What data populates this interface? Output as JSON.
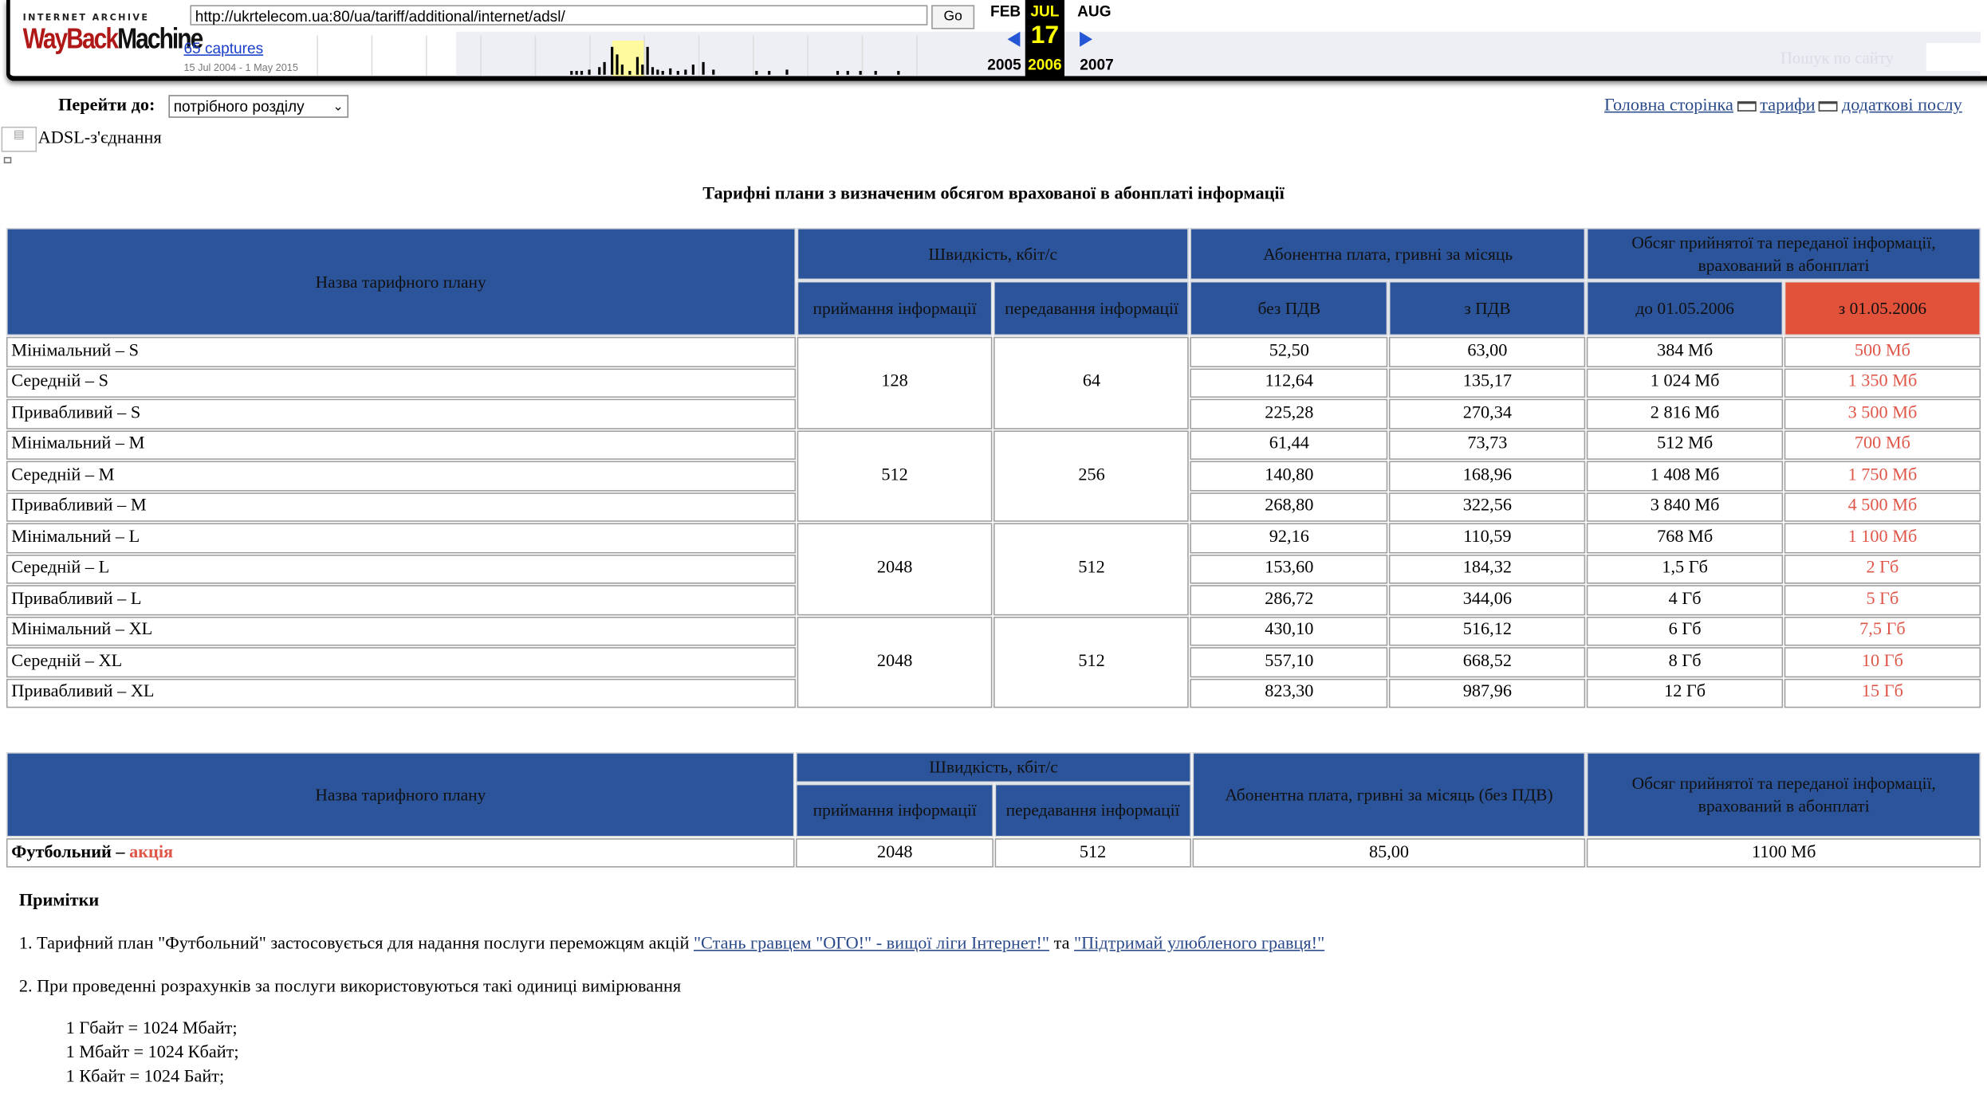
{
  "wayback": {
    "logo_top": "INTERNET ARCHIVE",
    "logo_main_a": "WayBack",
    "logo_main_b": "Machine",
    "url": "http://ukrtelecom.ua:80/ua/tariff/additional/internet/adsl/",
    "go_label": "Go",
    "captures_link": "65 captures",
    "date_range": "15 Jul 2004 - 1 May 2015",
    "months": {
      "prev": "FEB",
      "current": "JUL",
      "next": "AUG"
    },
    "day": "17",
    "years": {
      "prev": "2005",
      "current": "2006",
      "next": "2007"
    },
    "search_label": "Пошук по сайту"
  },
  "nav": {
    "goto_label": "Перейти до:",
    "goto_select": "потрібного розділу",
    "breadcrumbs": [
      "Головна сторінка",
      "тарифи",
      "додаткові послу"
    ]
  },
  "section": {
    "adsl_label": "ADSL-з'єднання"
  },
  "title": "Тарифні плани з визначеним обсягом врахованої в абонплаті інформації",
  "table1": {
    "headers": {
      "name": "Назва тарифного плану",
      "speed": "Швидкість, кбіт/с",
      "fee": "Абонентна плата, гривні за місяць",
      "volume": "Обсяг прийнятої та переданої інформації, врахований в абонплаті",
      "rx": "приймання інформації",
      "tx": "передавання інформації",
      "no_vat": "без ПДВ",
      "vat": "з ПДВ",
      "before": "до 01.05.2006",
      "after": "з 01.05.2006"
    },
    "groups": [
      {
        "rx": "128",
        "tx": "64"
      },
      {
        "rx": "512",
        "tx": "256"
      },
      {
        "rx": "2048",
        "tx": "512"
      },
      {
        "rx": "2048",
        "tx": "512"
      }
    ],
    "rows": [
      {
        "name": "Мінімальний – S",
        "no_vat": "52,50",
        "vat": "63,00",
        "before": "384 Мб",
        "after": "500 Мб"
      },
      {
        "name": "Середній – S",
        "no_vat": "112,64",
        "vat": "135,17",
        "before": "1 024 Мб",
        "after": "1 350 Мб"
      },
      {
        "name": "Привабливий – S",
        "no_vat": "225,28",
        "vat": "270,34",
        "before": "2 816 Мб",
        "after": "3 500 Мб"
      },
      {
        "name": "Мінімальний – M",
        "no_vat": "61,44",
        "vat": "73,73",
        "before": "512 Мб",
        "after": "700 Мб"
      },
      {
        "name": "Середній – M",
        "no_vat": "140,80",
        "vat": "168,96",
        "before": "1 408 Мб",
        "after": "1 750 Мб"
      },
      {
        "name": "Привабливий – M",
        "no_vat": "268,80",
        "vat": "322,56",
        "before": "3 840 Мб",
        "after": "4 500 Мб"
      },
      {
        "name": "Мінімальний – L",
        "no_vat": "92,16",
        "vat": "110,59",
        "before": "768 Мб",
        "after": "1 100 Мб"
      },
      {
        "name": "Середній – L",
        "no_vat": "153,60",
        "vat": "184,32",
        "before": "1,5 Гб",
        "after": "2 Гб"
      },
      {
        "name": "Привабливий – L",
        "no_vat": "286,72",
        "vat": "344,06",
        "before": "4 Гб",
        "after": "5 Гб"
      },
      {
        "name": "Мінімальний – XL",
        "no_vat": "430,10",
        "vat": "516,12",
        "before": "6 Гб",
        "after": "7,5 Гб"
      },
      {
        "name": "Середній – XL",
        "no_vat": "557,10",
        "vat": "668,52",
        "before": "8 Гб",
        "after": "10 Гб"
      },
      {
        "name": "Привабливий – XL",
        "no_vat": "823,30",
        "vat": "987,96",
        "before": "12 Гб",
        "after": "15 Гб"
      }
    ]
  },
  "table2": {
    "headers": {
      "name": "Назва тарифного плану",
      "speed": "Швидкість, кбіт/с",
      "rx": "приймання інформації",
      "tx": "передавання інформації",
      "fee": "Абонентна плата, гривні за місяць (без ПДВ)",
      "volume": "Обсяг прийнятої та переданої інформації, врахований в абонплаті"
    },
    "row": {
      "name": "Футбольний",
      "dash": " – ",
      "promo": "акція",
      "rx": "2048",
      "tx": "512",
      "fee": "85,00",
      "volume": "1100 Мб"
    }
  },
  "notes": {
    "heading": "Примітки",
    "note1_text": "1. Тарифний план \"Футбольний\" застосовується для надання послуги переможцям акцій ",
    "note1_link1": "\"Стань гравцем \"ОГО!\" - вищої ліги Інтернет!\"",
    "note1_and": " та ",
    "note1_link2": "\"Підтримай улюбленого гравця!\"",
    "note2_text": "2. При проведенні розрахунків за послуги використовуються такі одиниці вимірювання",
    "units": [
      "1 Гбайт = 1024 Мбайт;",
      "1 Мбайт = 1024 Кбайт;",
      "1 Кбайт = 1024 Байт;"
    ]
  },
  "colors": {
    "header_blue": "#2c549a",
    "header_red": "#e2523a",
    "red_text": "#e0574a",
    "link": "#2a4a8a"
  }
}
